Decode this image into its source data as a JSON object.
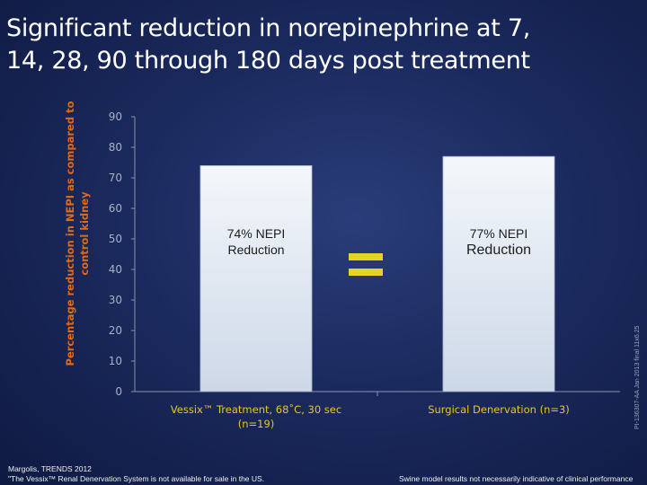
{
  "slide": {
    "title_line1": "Significant reduction in norepinephrine at 7,",
    "title_line2": "14, 28, 90 through 180 days post treatment",
    "equals_symbol": "=",
    "footnote_left_line1": "Margolis, TRENDS 2012",
    "footnote_left_line2": "\"The Vessix™ Renal Denervation System is not available for sale in the US.",
    "footnote_right": "Swine model results not necessarily indicative of clinical performance",
    "side_code": "PI-136307-AA  Jan 2013  final  11x6.25"
  },
  "chart_data": {
    "type": "bar",
    "ylabel_line1": "Percentage reduction in NEPI as compared to",
    "ylabel_line2": "control kidney",
    "ylim": [
      0,
      90
    ],
    "yticks": [
      0,
      10,
      20,
      30,
      40,
      50,
      60,
      70,
      80,
      90
    ],
    "grid": false,
    "categories": [
      {
        "line1": "Vessix™ Treatment, 68˚C, 30 sec",
        "line2": "(n=19)"
      },
      {
        "line1": "Surgical  Denervation (n=3)",
        "line2": ""
      }
    ],
    "values": [
      74,
      77
    ],
    "annotations": [
      {
        "line1": "74% NEPI",
        "line2": "Reduction"
      },
      {
        "line1": "77% NEPI",
        "line2": "Reduction"
      }
    ],
    "colors": {
      "bar_top": "#f4f7fb",
      "bar_bottom": "#cdd8e8",
      "label": "#e8c81a",
      "axis_title": "#e06a16",
      "equals": "#e8d31e"
    }
  }
}
